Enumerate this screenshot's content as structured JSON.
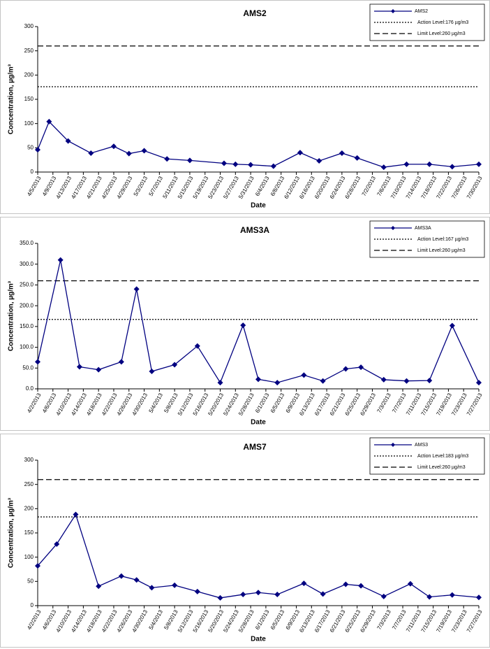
{
  "chart_data": [
    {
      "type": "line",
      "title": "AMS2",
      "xlabel": "Date",
      "ylabel": "Concentration, µg/m³",
      "xlim": [
        "4/5/2013",
        "7/30/2013"
      ],
      "xticks": [
        "4/5/2013",
        "4/9/2013",
        "4/13/2013",
        "4/17/2013",
        "4/21/2013",
        "4/25/2013",
        "4/29/2013",
        "5/3/2013",
        "5/7/2013",
        "5/11/2013",
        "5/15/2013",
        "5/19/2013",
        "5/23/2013",
        "5/27/2013",
        "5/31/2013",
        "6/4/2013",
        "6/8/2013",
        "6/12/2013",
        "6/16/2013",
        "6/20/2013",
        "6/24/2013",
        "6/28/2013",
        "7/2/2013",
        "7/6/2013",
        "7/10/2013",
        "7/14/2013",
        "7/18/2013",
        "7/22/2013",
        "7/26/2013",
        "7/30/2013"
      ],
      "ylim": [
        0,
        300
      ],
      "yticks": [
        0,
        50,
        100,
        150,
        200,
        250,
        300
      ],
      "series": [
        {
          "name": "AMS2",
          "color": "#000080",
          "marker": "diamond",
          "x": [
            "4/5/2013",
            "4/8/2013",
            "4/13/2013",
            "4/19/2013",
            "4/25/2013",
            "4/29/2013",
            "5/3/2013",
            "5/9/2013",
            "5/15/2013",
            "5/24/2013",
            "5/27/2013",
            "5/31/2013",
            "6/6/2013",
            "6/13/2013",
            "6/18/2013",
            "6/24/2013",
            "6/28/2013",
            "7/5/2013",
            "7/11/2013",
            "7/17/2013",
            "7/23/2013",
            "7/30/2013"
          ],
          "values": [
            46,
            104,
            64,
            39,
            53,
            38,
            44,
            27,
            24,
            18,
            16,
            15,
            12,
            40,
            23,
            39,
            29,
            10,
            16,
            16,
            11,
            16
          ]
        }
      ],
      "reference_lines": [
        {
          "name": "Action Level:176 µg/m3",
          "value": 176,
          "style": "dotted"
        },
        {
          "name": "Limit Level:260 µg/m3",
          "value": 260,
          "style": "dashed"
        }
      ]
    },
    {
      "type": "line",
      "title": "AMS3A",
      "xlabel": "Date",
      "ylabel": "Concentration, µg/m³",
      "xlim": [
        "4/2/2013",
        "7/27/2013"
      ],
      "xticks": [
        "4/2/2013",
        "4/6/2013",
        "4/10/2013",
        "4/14/2013",
        "4/18/2013",
        "4/22/2013",
        "4/26/2013",
        "4/30/2013",
        "5/4/2013",
        "5/8/2013",
        "5/12/2013",
        "5/16/2013",
        "5/20/2013",
        "5/24/2013",
        "5/28/2013",
        "6/1/2013",
        "6/5/2013",
        "6/9/2013",
        "6/13/2013",
        "6/17/2013",
        "6/21/2013",
        "6/25/2013",
        "6/29/2013",
        "7/3/2013",
        "7/7/2013",
        "7/11/2013",
        "7/15/2013",
        "7/19/2013",
        "7/23/2013",
        "7/27/2013"
      ],
      "ylim": [
        0,
        350
      ],
      "yticks": [
        {
          "value": 0,
          "label": "0.0"
        },
        {
          "value": 50,
          "label": "50.0"
        },
        {
          "value": 100,
          "label": "100.0"
        },
        {
          "value": 150,
          "label": "150.0"
        },
        {
          "value": 200,
          "label": "200.0"
        },
        {
          "value": 250,
          "label": "250.0"
        },
        {
          "value": 300,
          "label": "300.0"
        },
        {
          "value": 350,
          "label": "350.0"
        }
      ],
      "series": [
        {
          "name": "AMS3A",
          "color": "#000080",
          "marker": "diamond",
          "x": [
            "4/2/2013",
            "4/8/2013",
            "4/13/2013",
            "4/18/2013",
            "4/24/2013",
            "4/28/2013",
            "5/2/2013",
            "5/8/2013",
            "5/14/2013",
            "5/20/2013",
            "5/26/2013",
            "5/30/2013",
            "6/4/2013",
            "6/11/2013",
            "6/16/2013",
            "6/22/2013",
            "6/26/2013",
            "7/2/2013",
            "7/8/2013",
            "7/14/2013",
            "7/20/2013",
            "7/27/2013"
          ],
          "values": [
            65,
            310,
            53,
            46,
            65,
            240,
            42,
            58,
            103,
            15,
            153,
            23,
            15,
            33,
            19,
            48,
            52,
            22,
            19,
            20,
            152,
            15
          ]
        }
      ],
      "reference_lines": [
        {
          "name": "Action Level:167 µg/m3",
          "value": 167,
          "style": "dotted"
        },
        {
          "name": "Limit Level:260 µg/m3",
          "value": 260,
          "style": "dashed"
        }
      ]
    },
    {
      "type": "line",
      "title": "AMS7",
      "xlabel": "Date",
      "ylabel": "Concentration, µg/m³",
      "xlim": [
        "4/2/2013",
        "7/27/2013"
      ],
      "xticks": [
        "4/2/2013",
        "4/6/2013",
        "4/10/2013",
        "4/14/2013",
        "4/18/2013",
        "4/22/2013",
        "4/26/2013",
        "4/30/2013",
        "5/4/2013",
        "5/8/2013",
        "5/12/2013",
        "5/16/2013",
        "5/20/2013",
        "5/24/2013",
        "5/28/2013",
        "6/1/2013",
        "6/5/2013",
        "6/9/2013",
        "6/13/2013",
        "6/17/2013",
        "6/21/2013",
        "6/25/2013",
        "6/29/2013",
        "7/3/2013",
        "7/7/2013",
        "7/11/2013",
        "7/15/2013",
        "7/19/2013",
        "7/23/2013",
        "7/27/2013"
      ],
      "ylim": [
        0,
        300
      ],
      "yticks": [
        0,
        50,
        100,
        150,
        200,
        250,
        300
      ],
      "series": [
        {
          "name": "AMS3",
          "color": "#000080",
          "marker": "diamond",
          "x": [
            "4/2/2013",
            "4/7/2013",
            "4/12/2013",
            "4/18/2013",
            "4/24/2013",
            "4/28/2013",
            "5/2/2013",
            "5/8/2013",
            "5/14/2013",
            "5/20/2013",
            "5/26/2013",
            "5/30/2013",
            "6/4/2013",
            "6/11/2013",
            "6/16/2013",
            "6/22/2013",
            "6/26/2013",
            "7/2/2013",
            "7/9/2013",
            "7/14/2013",
            "7/20/2013",
            "7/27/2013"
          ],
          "values": [
            82,
            127,
            188,
            40,
            61,
            53,
            37,
            42,
            29,
            16,
            23,
            27,
            23,
            46,
            24,
            44,
            41,
            19,
            45,
            18,
            22,
            17
          ]
        }
      ],
      "reference_lines": [
        {
          "name": "Action Level:183 µg/m3",
          "value": 183,
          "style": "dotted"
        },
        {
          "name": "Limit Level:260 µg/m3",
          "value": 260,
          "style": "dashed"
        }
      ]
    }
  ]
}
